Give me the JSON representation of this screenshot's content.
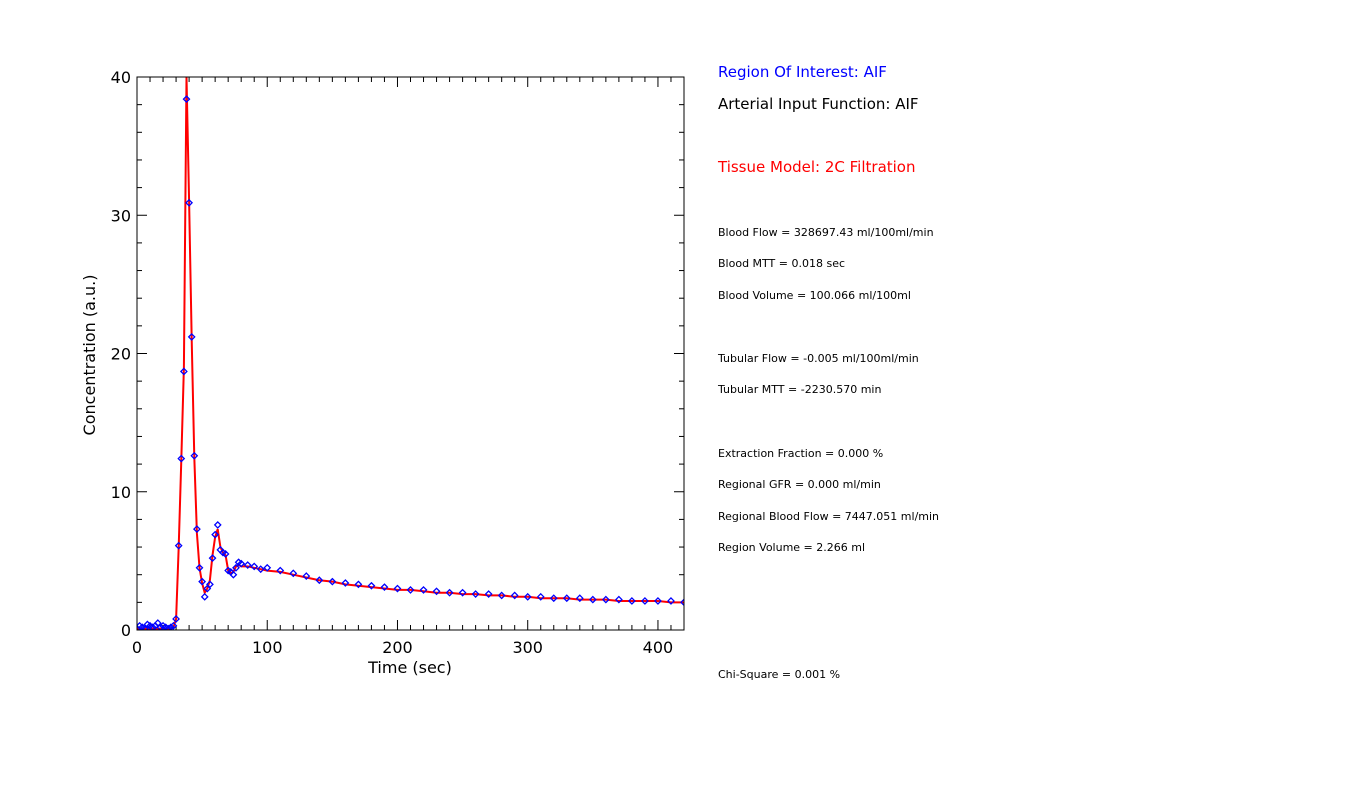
{
  "chart_data": {
    "type": "scatter",
    "xlabel": "Time (sec)",
    "ylabel": "Concentration (a.u.)",
    "xlim": [
      0,
      420
    ],
    "ylim": [
      0,
      40
    ],
    "xticks": [
      0,
      100,
      200,
      300,
      400
    ],
    "yticks": [
      0,
      10,
      20,
      30,
      40
    ],
    "xtick_labels": [
      "0",
      "100",
      "200",
      "300",
      "400"
    ],
    "ytick_labels": [
      "0",
      "10",
      "20",
      "30",
      "40"
    ],
    "series_colors": {
      "measured": "#0000ff",
      "fit": "#ff0000"
    },
    "x": [
      0,
      2,
      4,
      6,
      8,
      10,
      12,
      14,
      16,
      18,
      20,
      22,
      24,
      26,
      28,
      30,
      32,
      34,
      36,
      38,
      40,
      42,
      44,
      46,
      48,
      50,
      52,
      54,
      56,
      58,
      60,
      62,
      64,
      66,
      68,
      70,
      72,
      74,
      76,
      78,
      80,
      85,
      90,
      95,
      100,
      110,
      120,
      130,
      140,
      150,
      160,
      170,
      180,
      190,
      200,
      210,
      220,
      230,
      240,
      250,
      260,
      270,
      280,
      290,
      300,
      310,
      320,
      330,
      340,
      350,
      360,
      370,
      380,
      390,
      400,
      410,
      420
    ],
    "series": [
      {
        "values": [
          0.1,
          0.3,
          0.2,
          0.1,
          0.4,
          0.3,
          0.2,
          0.3,
          0.5,
          0.2,
          0.3,
          0.2,
          0.1,
          0.2,
          0.3,
          0.8,
          6.1,
          12.4,
          18.7,
          38.4,
          30.9,
          21.2,
          12.6,
          7.3,
          4.5,
          3.5,
          2.4,
          3.0,
          3.3,
          5.2,
          6.9,
          7.6,
          5.8,
          5.6,
          5.5,
          4.3,
          4.2,
          4.0,
          4.5,
          4.9,
          4.8,
          4.7,
          4.6,
          4.4,
          4.5,
          4.3,
          4.1,
          3.9,
          3.6,
          3.5,
          3.4,
          3.3,
          3.2,
          3.1,
          3.0,
          2.9,
          2.9,
          2.8,
          2.7,
          2.7,
          2.6,
          2.6,
          2.5,
          2.5,
          2.4,
          2.4,
          2.3,
          2.3,
          2.3,
          2.2,
          2.2,
          2.2,
          2.1,
          2.1,
          2.1,
          2.1,
          2.0
        ]
      },
      {
        "values": [
          0.1,
          0.1,
          0.1,
          0.1,
          0.1,
          0.1,
          0.1,
          0.1,
          0.1,
          0.1,
          0.1,
          0.1,
          0.1,
          0.1,
          0.2,
          0.8,
          6.0,
          12.3,
          19.0,
          40.0,
          31.0,
          21.0,
          12.5,
          7.0,
          4.5,
          3.4,
          2.7,
          3.0,
          3.6,
          5.4,
          6.7,
          7.3,
          6.0,
          5.6,
          5.4,
          4.3,
          4.1,
          4.2,
          4.6,
          4.7,
          4.6,
          4.6,
          4.5,
          4.4,
          4.3,
          4.2,
          4.0,
          3.8,
          3.6,
          3.5,
          3.3,
          3.2,
          3.1,
          3.0,
          2.9,
          2.9,
          2.8,
          2.7,
          2.7,
          2.6,
          2.6,
          2.5,
          2.5,
          2.4,
          2.4,
          2.3,
          2.3,
          2.3,
          2.2,
          2.2,
          2.2,
          2.1,
          2.1,
          2.1,
          2.1,
          2.0,
          2.0
        ]
      }
    ]
  },
  "info": {
    "roi": "Region Of Interest: AIF",
    "aif": "Arterial Input Function: AIF",
    "model": "Tissue Model: 2C Filtration",
    "blood_flow": "Blood Flow = 328697.43 ml/100ml/min",
    "blood_mtt": "Blood MTT = 0.018 sec",
    "blood_volume": "Blood Volume = 100.066 ml/100ml",
    "tubular_flow": "Tubular Flow = -0.005 ml/100ml/min",
    "tubular_mtt": "Tubular MTT = -2230.570 min",
    "extraction_fraction": "Extraction Fraction = 0.000 %",
    "regional_gfr": "Regional GFR = 0.000 ml/min",
    "regional_blood_flow": "Regional Blood Flow = 7447.051 ml/min",
    "region_volume": "Region Volume = 2.266 ml",
    "chi_square": "Chi-Square = 0.001 %"
  },
  "colors": {
    "roi": "#0000ff",
    "aif": "#000000",
    "model": "#ff0000",
    "stats": "#000000"
  }
}
